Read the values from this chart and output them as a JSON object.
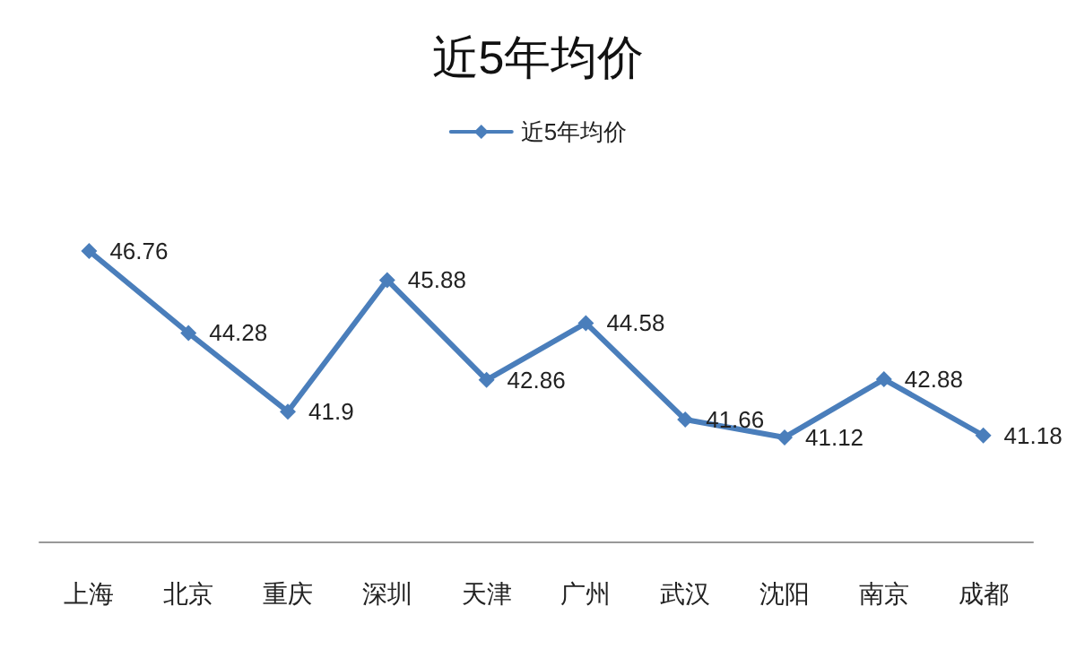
{
  "chart_data": {
    "type": "line",
    "title": "近5年均价",
    "categories": [
      "上海",
      "北京",
      "重庆",
      "深圳",
      "天津",
      "广州",
      "武汉",
      "沈阳",
      "南京",
      "成都"
    ],
    "series": [
      {
        "name": "近5年均价",
        "color": "#4a7ebb",
        "values": [
          46.76,
          44.28,
          41.9,
          45.88,
          42.86,
          44.58,
          41.66,
          41.12,
          42.88,
          41.18
        ]
      }
    ],
    "data_labels": true,
    "marker": "diamond",
    "legend": "top",
    "grid": false
  }
}
